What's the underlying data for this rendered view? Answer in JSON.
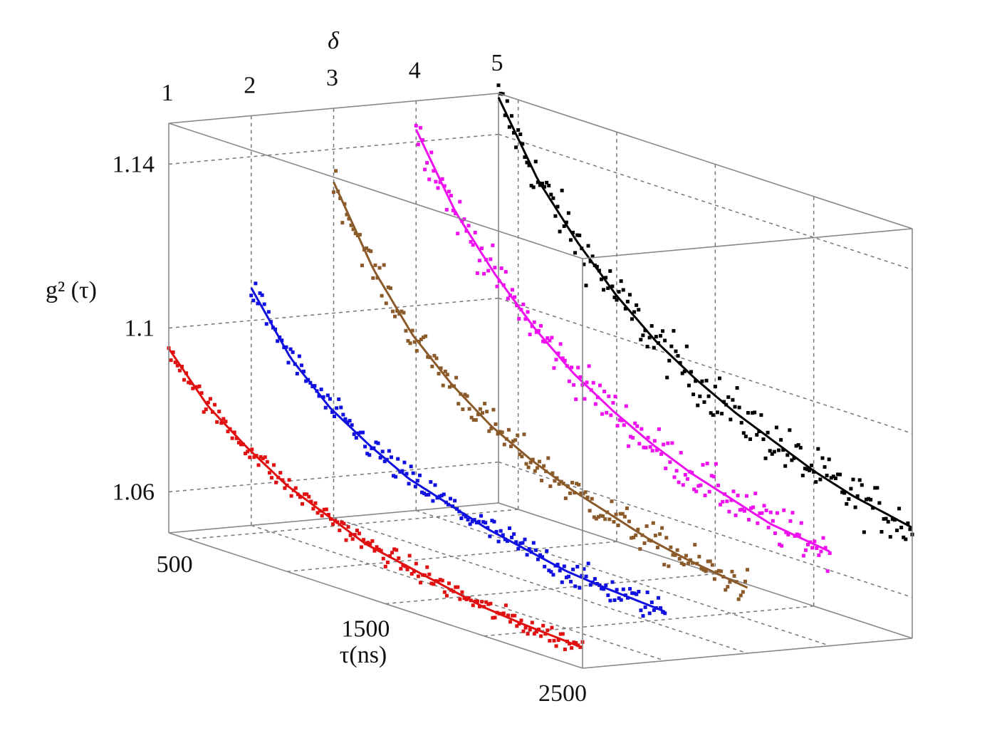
{
  "chart_data": {
    "type": "scatter",
    "subtype": "3d-scatter-with-fit-curves",
    "x_axis": {
      "label": "τ(ns)",
      "range": [
        400,
        2500
      ],
      "ticks": [
        500,
        1500,
        2500
      ]
    },
    "y_axis": {
      "label": "δ",
      "range": [
        1,
        5
      ],
      "ticks": [
        1,
        2,
        3,
        4,
        5
      ]
    },
    "z_axis": {
      "label": "g² (τ)",
      "range": [
        1.05,
        1.15
      ],
      "ticks": [
        1.06,
        1.1,
        1.14
      ]
    },
    "grid": true,
    "series": [
      {
        "delta": 1,
        "color": "#e01010",
        "x": [
          400,
          600,
          800,
          1000,
          1200,
          1400,
          1600,
          1800,
          2000,
          2200,
          2500
        ],
        "y": [
          1.095,
          1.084,
          1.077,
          1.071,
          1.067,
          1.063,
          1.061,
          1.059,
          1.057,
          1.056,
          1.055
        ]
      },
      {
        "delta": 2,
        "color": "#1010e0",
        "x": [
          400,
          600,
          800,
          1000,
          1200,
          1400,
          1600,
          1800,
          2000,
          2200,
          2500
        ],
        "y": [
          1.108,
          1.094,
          1.085,
          1.079,
          1.074,
          1.071,
          1.068,
          1.066,
          1.064,
          1.063,
          1.062
        ]
      },
      {
        "delta": 3,
        "color": "#8b5a2b",
        "x": [
          400,
          600,
          800,
          1000,
          1200,
          1400,
          1600,
          1800,
          2000,
          2200,
          2500
        ],
        "y": [
          1.132,
          1.114,
          1.101,
          1.092,
          1.085,
          1.08,
          1.076,
          1.073,
          1.07,
          1.068,
          1.066
        ]
      },
      {
        "delta": 4,
        "color": "#ee10ee",
        "x": [
          400,
          600,
          800,
          1000,
          1200,
          1400,
          1600,
          1800,
          2000,
          2200,
          2500
        ],
        "y": [
          1.143,
          1.126,
          1.114,
          1.104,
          1.096,
          1.09,
          1.085,
          1.081,
          1.078,
          1.075,
          1.073
        ]
      },
      {
        "delta": 5,
        "color": "#000000",
        "x": [
          400,
          600,
          800,
          1000,
          1200,
          1400,
          1600,
          1800,
          2000,
          2200,
          2500
        ],
        "y": [
          1.149,
          1.132,
          1.12,
          1.11,
          1.102,
          1.096,
          1.091,
          1.087,
          1.083,
          1.08,
          1.077
        ]
      }
    ]
  }
}
